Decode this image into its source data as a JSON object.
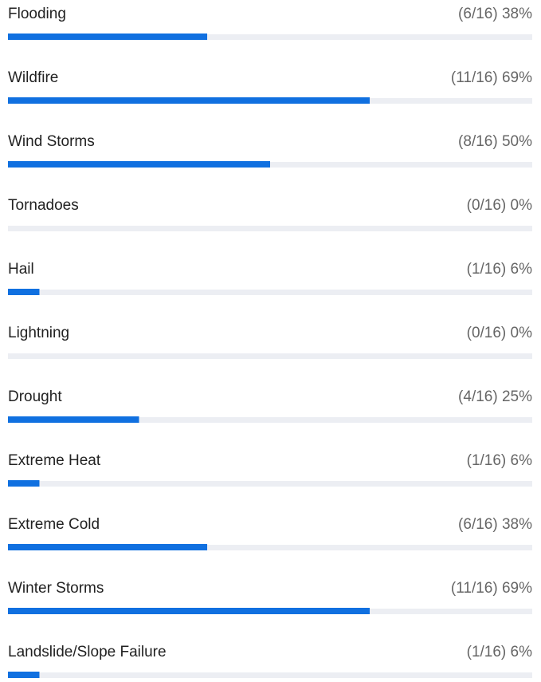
{
  "chart_data": {
    "type": "bar",
    "orientation": "horizontal",
    "categories": [
      "Flooding",
      "Wildfire",
      "Wind Storms",
      "Tornadoes",
      "Hail",
      "Lightning",
      "Drought",
      "Extreme Heat",
      "Extreme Cold",
      "Winter Storms",
      "Landslide/Slope Failure"
    ],
    "values": [
      38,
      69,
      50,
      0,
      6,
      0,
      25,
      6,
      38,
      69,
      6
    ],
    "value_labels": [
      "(6/16) 38%",
      "(11/16) 69%",
      "(8/16) 50%",
      "(0/16) 0%",
      "(1/16) 6%",
      "(0/16) 0%",
      "(4/16) 25%",
      "(1/16) 6%",
      "(6/16) 38%",
      "(11/16) 69%",
      "(1/16) 6%"
    ],
    "color": "#1070e0",
    "track_color": "#eceef3",
    "xlim": [
      0,
      100
    ]
  }
}
